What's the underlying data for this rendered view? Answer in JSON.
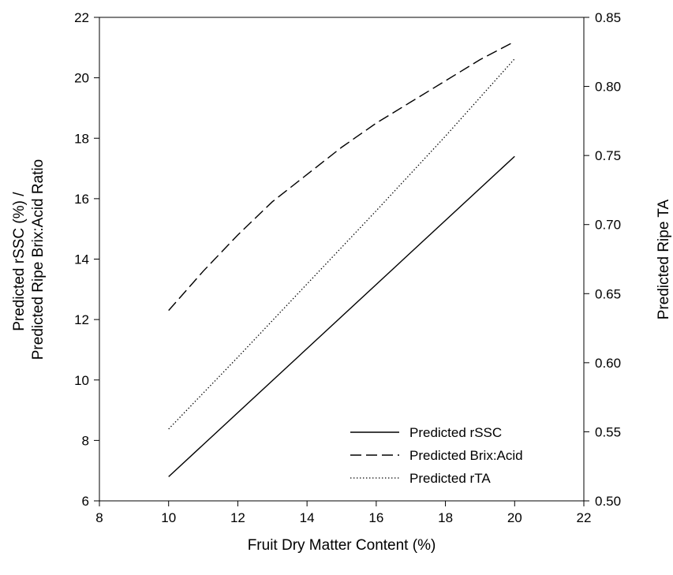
{
  "chart_data": {
    "type": "line",
    "xlabel": "Fruit Dry Matter Content (%)",
    "ylabel_lines": [
      "Predicted rSSC (%) /",
      "Predicted Ripe Brix:Acid Ratio"
    ],
    "y2label": "Predicted Ripe TA",
    "xlim": [
      8,
      22
    ],
    "ylim": [
      6,
      22
    ],
    "y2lim": [
      0.5,
      0.85
    ],
    "x_ticks": [
      8,
      10,
      12,
      14,
      16,
      18,
      20,
      22
    ],
    "y_ticks": [
      6,
      8,
      10,
      12,
      14,
      16,
      18,
      20,
      22
    ],
    "y2_ticks": [
      "0.50",
      "0.55",
      "0.60",
      "0.65",
      "0.70",
      "0.75",
      "0.80",
      "0.85"
    ],
    "grid": false,
    "legend_position": "bottom-right",
    "series": [
      {
        "name": "Predicted rSSC",
        "axis": "left",
        "style": "solid",
        "x": [
          10,
          20
        ],
        "values": [
          6.8,
          17.4
        ]
      },
      {
        "name": "Predicted Brix:Acid",
        "axis": "left",
        "style": "dashed",
        "x": [
          10,
          11,
          12,
          13,
          14,
          15,
          16,
          17,
          18,
          19,
          20
        ],
        "values": [
          12.3,
          13.6,
          14.8,
          15.9,
          16.8,
          17.7,
          18.5,
          19.2,
          19.9,
          20.6,
          21.2
        ]
      },
      {
        "name": "Predicted rTA",
        "axis": "right",
        "style": "dotted",
        "x": [
          10,
          12,
          14,
          16,
          18,
          20
        ],
        "values": [
          0.552,
          0.604,
          0.657,
          0.71,
          0.764,
          0.82
        ]
      }
    ]
  }
}
